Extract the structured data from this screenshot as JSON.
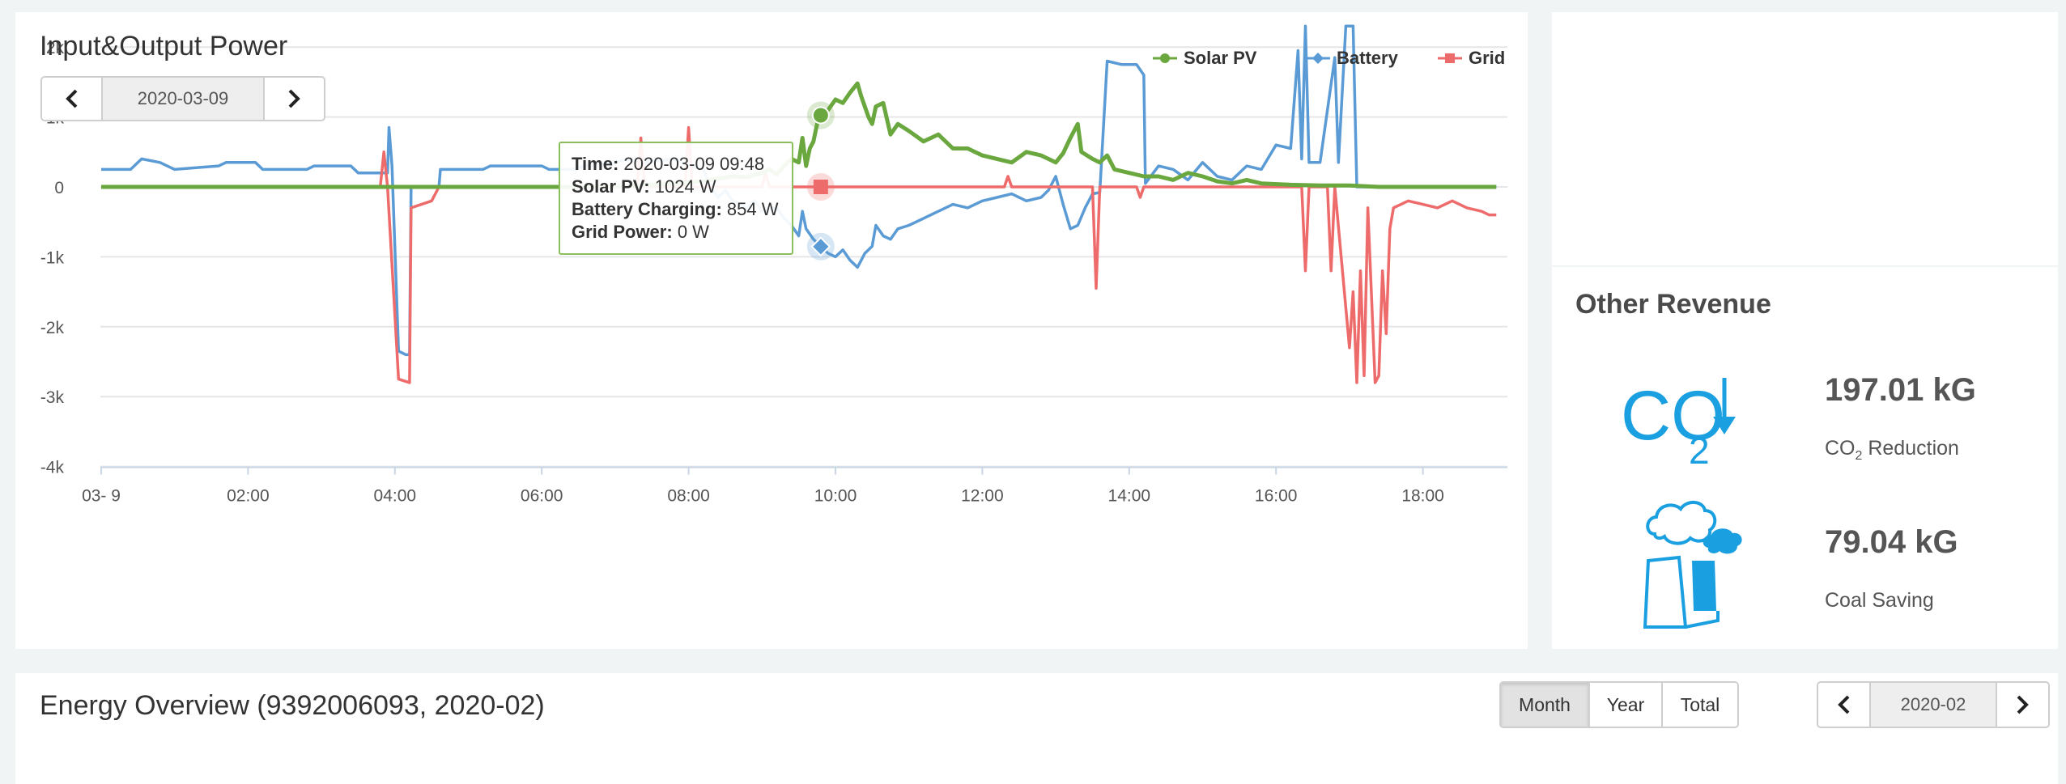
{
  "power_panel": {
    "title": "Input&Output Power",
    "date_nav": {
      "date": "2020-03-09",
      "prev_icon": "chevron-left-icon",
      "next_icon": "chevron-right-icon"
    },
    "legend": [
      {
        "name": "Solar PV",
        "color": "#6aa83f",
        "marker": "circle"
      },
      {
        "name": "Battery",
        "color": "#5b9bd5",
        "marker": "diamond"
      },
      {
        "name": "Grid",
        "color": "#ee6b6b",
        "marker": "square"
      }
    ],
    "tooltip": {
      "time_label": "Time:",
      "time_value": "2020-03-09 09:48",
      "solar_label": "Solar PV:",
      "solar_value": "1024 W",
      "battery_label": "Battery Charging:",
      "battery_value": "854 W",
      "grid_label": "Grid Power:",
      "grid_value": "0 W"
    }
  },
  "chart_data": {
    "type": "line",
    "title": "",
    "xlabel": "",
    "ylabel": "",
    "x_tick_labels": [
      "03- 9",
      "02:00",
      "04:00",
      "06:00",
      "08:00",
      "10:00",
      "12:00",
      "14:00",
      "16:00",
      "18:00"
    ],
    "y_tick_labels": [
      "2k",
      "1k",
      "0",
      "-1k",
      "-2k",
      "-3k",
      "-4k"
    ],
    "xlim_hours": [
      0,
      19
    ],
    "ylim": [
      -4000,
      2500
    ],
    "grid": "horizontal",
    "legend_position": "top-right",
    "hover_time_hours": 9.8,
    "series": [
      {
        "name": "Solar PV",
        "color": "#6aa83f",
        "points": [
          [
            0,
            0
          ],
          [
            4.0,
            0
          ],
          [
            4.1,
            0
          ],
          [
            7.0,
            0
          ],
          [
            7.8,
            50
          ],
          [
            8.2,
            80
          ],
          [
            8.4,
            120
          ],
          [
            8.6,
            150
          ],
          [
            8.8,
            140
          ],
          [
            9.0,
            200
          ],
          [
            9.1,
            250
          ],
          [
            9.2,
            180
          ],
          [
            9.3,
            300
          ],
          [
            9.4,
            400
          ],
          [
            9.5,
            350
          ],
          [
            9.55,
            700
          ],
          [
            9.6,
            300
          ],
          [
            9.65,
            550
          ],
          [
            9.7,
            650
          ],
          [
            9.75,
            900
          ],
          [
            9.8,
            1024
          ],
          [
            9.9,
            1100
          ],
          [
            10.0,
            1250
          ],
          [
            10.1,
            1200
          ],
          [
            10.2,
            1350
          ],
          [
            10.3,
            1480
          ],
          [
            10.35,
            1300
          ],
          [
            10.45,
            1000
          ],
          [
            10.5,
            900
          ],
          [
            10.55,
            1150
          ],
          [
            10.65,
            1200
          ],
          [
            10.75,
            750
          ],
          [
            10.85,
            900
          ],
          [
            11.0,
            800
          ],
          [
            11.2,
            650
          ],
          [
            11.4,
            750
          ],
          [
            11.6,
            550
          ],
          [
            11.8,
            550
          ],
          [
            12.0,
            450
          ],
          [
            12.2,
            400
          ],
          [
            12.4,
            350
          ],
          [
            12.6,
            500
          ],
          [
            12.8,
            450
          ],
          [
            12.9,
            400
          ],
          [
            13.0,
            350
          ],
          [
            13.1,
            480
          ],
          [
            13.2,
            700
          ],
          [
            13.3,
            900
          ],
          [
            13.35,
            500
          ],
          [
            13.5,
            400
          ],
          [
            13.6,
            350
          ],
          [
            13.7,
            450
          ],
          [
            13.8,
            250
          ],
          [
            14.0,
            200
          ],
          [
            14.2,
            150
          ],
          [
            14.4,
            150
          ],
          [
            14.6,
            100
          ],
          [
            14.8,
            200
          ],
          [
            15.0,
            150
          ],
          [
            15.2,
            80
          ],
          [
            15.4,
            50
          ],
          [
            15.6,
            100
          ],
          [
            15.8,
            50
          ],
          [
            16.2,
            30
          ],
          [
            16.6,
            20
          ],
          [
            17.0,
            20
          ],
          [
            17.4,
            0
          ],
          [
            19.0,
            0
          ]
        ]
      },
      {
        "name": "Battery",
        "color": "#5b9bd5",
        "points": [
          [
            0,
            250
          ],
          [
            0.4,
            250
          ],
          [
            0.45,
            300
          ],
          [
            0.55,
            400
          ],
          [
            0.8,
            350
          ],
          [
            1.0,
            250
          ],
          [
            1.6,
            300
          ],
          [
            1.7,
            350
          ],
          [
            2.1,
            350
          ],
          [
            2.2,
            250
          ],
          [
            2.8,
            250
          ],
          [
            2.9,
            300
          ],
          [
            3.4,
            300
          ],
          [
            3.5,
            200
          ],
          [
            3.9,
            200
          ],
          [
            3.92,
            850
          ],
          [
            3.96,
            300
          ],
          [
            4.05,
            -2350
          ],
          [
            4.15,
            -2400
          ],
          [
            4.2,
            -2400
          ],
          [
            4.22,
            0
          ],
          [
            4.6,
            0
          ],
          [
            4.62,
            250
          ],
          [
            5.2,
            250
          ],
          [
            5.3,
            300
          ],
          [
            6.0,
            300
          ],
          [
            6.1,
            250
          ],
          [
            6.4,
            250
          ],
          [
            6.6,
            300
          ],
          [
            7.0,
            350
          ],
          [
            7.2,
            400
          ],
          [
            7.4,
            350
          ],
          [
            7.8,
            400
          ],
          [
            8.0,
            300
          ],
          [
            8.2,
            250
          ],
          [
            8.3,
            0
          ],
          [
            8.4,
            -150
          ],
          [
            8.5,
            -50
          ],
          [
            8.6,
            -200
          ],
          [
            8.8,
            -300
          ],
          [
            8.9,
            -200
          ],
          [
            9.0,
            -350
          ],
          [
            9.2,
            -300
          ],
          [
            9.3,
            -450
          ],
          [
            9.4,
            -550
          ],
          [
            9.5,
            -700
          ],
          [
            9.55,
            -350
          ],
          [
            9.6,
            -600
          ],
          [
            9.7,
            -750
          ],
          [
            9.8,
            -854
          ],
          [
            9.9,
            -950
          ],
          [
            10.0,
            -1000
          ],
          [
            10.1,
            -900
          ],
          [
            10.2,
            -1050
          ],
          [
            10.3,
            -1150
          ],
          [
            10.4,
            -950
          ],
          [
            10.5,
            -850
          ],
          [
            10.55,
            -550
          ],
          [
            10.65,
            -700
          ],
          [
            10.75,
            -750
          ],
          [
            10.85,
            -600
          ],
          [
            11.0,
            -550
          ],
          [
            11.2,
            -450
          ],
          [
            11.4,
            -350
          ],
          [
            11.6,
            -250
          ],
          [
            11.8,
            -300
          ],
          [
            12.0,
            -200
          ],
          [
            12.2,
            -150
          ],
          [
            12.4,
            -100
          ],
          [
            12.6,
            -200
          ],
          [
            12.8,
            -150
          ],
          [
            12.9,
            -50
          ],
          [
            13.0,
            150
          ],
          [
            13.1,
            -250
          ],
          [
            13.2,
            -600
          ],
          [
            13.3,
            -550
          ],
          [
            13.4,
            -300
          ],
          [
            13.5,
            -100
          ],
          [
            13.6,
            -80
          ],
          [
            13.7,
            1800
          ],
          [
            13.9,
            1750
          ],
          [
            14.1,
            1750
          ],
          [
            14.2,
            1600
          ],
          [
            14.22,
            50
          ],
          [
            14.4,
            300
          ],
          [
            14.6,
            250
          ],
          [
            14.8,
            100
          ],
          [
            15.0,
            350
          ],
          [
            15.2,
            150
          ],
          [
            15.4,
            100
          ],
          [
            15.6,
            300
          ],
          [
            15.8,
            250
          ],
          [
            16.0,
            600
          ],
          [
            16.2,
            550
          ],
          [
            16.3,
            1950
          ],
          [
            16.35,
            400
          ],
          [
            16.4,
            2300
          ],
          [
            16.45,
            350
          ],
          [
            16.6,
            350
          ],
          [
            16.8,
            1850
          ],
          [
            16.85,
            350
          ],
          [
            16.95,
            2300
          ],
          [
            17.05,
            2300
          ],
          [
            17.1,
            0
          ],
          [
            19.0,
            0
          ]
        ]
      },
      {
        "name": "Grid",
        "color": "#ee6b6b",
        "points": [
          [
            0,
            0
          ],
          [
            3.8,
            0
          ],
          [
            3.85,
            500
          ],
          [
            3.9,
            0
          ],
          [
            4.05,
            -2750
          ],
          [
            4.2,
            -2800
          ],
          [
            4.22,
            -300
          ],
          [
            4.5,
            -200
          ],
          [
            4.6,
            0
          ],
          [
            7.3,
            0
          ],
          [
            7.35,
            700
          ],
          [
            7.4,
            0
          ],
          [
            7.95,
            0
          ],
          [
            8.0,
            850
          ],
          [
            8.05,
            0
          ],
          [
            8.2,
            0
          ],
          [
            9.0,
            0
          ],
          [
            9.05,
            200
          ],
          [
            9.1,
            0
          ],
          [
            10.5,
            0
          ],
          [
            11.5,
            0
          ],
          [
            12.3,
            0
          ],
          [
            12.35,
            150
          ],
          [
            12.4,
            0
          ],
          [
            13.5,
            0
          ],
          [
            13.55,
            -1450
          ],
          [
            13.6,
            0
          ],
          [
            14.1,
            0
          ],
          [
            14.15,
            -150
          ],
          [
            14.2,
            0
          ],
          [
            15.6,
            0
          ],
          [
            16.35,
            0
          ],
          [
            16.4,
            -1200
          ],
          [
            16.45,
            0
          ],
          [
            16.7,
            0
          ],
          [
            16.75,
            -1200
          ],
          [
            16.8,
            0
          ],
          [
            17.0,
            -2300
          ],
          [
            17.05,
            -1500
          ],
          [
            17.1,
            -2800
          ],
          [
            17.15,
            -1200
          ],
          [
            17.2,
            -2700
          ],
          [
            17.25,
            -300
          ],
          [
            17.35,
            -2800
          ],
          [
            17.4,
            -2700
          ],
          [
            17.45,
            -1200
          ],
          [
            17.5,
            -2100
          ],
          [
            17.55,
            -600
          ],
          [
            17.6,
            -300
          ],
          [
            17.8,
            -200
          ],
          [
            18.0,
            -250
          ],
          [
            18.2,
            -300
          ],
          [
            18.4,
            -200
          ],
          [
            18.6,
            -300
          ],
          [
            18.8,
            -350
          ],
          [
            18.9,
            -400
          ],
          [
            19.0,
            -400
          ]
        ]
      }
    ],
    "hover_values": {
      "solar": 1024,
      "battery": -854,
      "grid": 0
    }
  },
  "revenue_panel": {
    "title": "Other Revenue",
    "items": [
      {
        "icon": "co2-down-icon",
        "value": "197.01 kG",
        "label_prefix": "CO",
        "label_sub": "2",
        "label_suffix": " Reduction"
      },
      {
        "icon": "coal-plant-icon",
        "value": "79.04 kG",
        "label": "Coal Saving"
      }
    ],
    "colors": {
      "icon": "#1a9fe0"
    }
  },
  "energy_panel": {
    "title": "Energy Overview (9392006093, 2020-02)",
    "period_tabs": [
      {
        "label": "Month",
        "active": true
      },
      {
        "label": "Year",
        "active": false
      },
      {
        "label": "Total",
        "active": false
      }
    ],
    "date_nav": {
      "date": "2020-02"
    }
  }
}
